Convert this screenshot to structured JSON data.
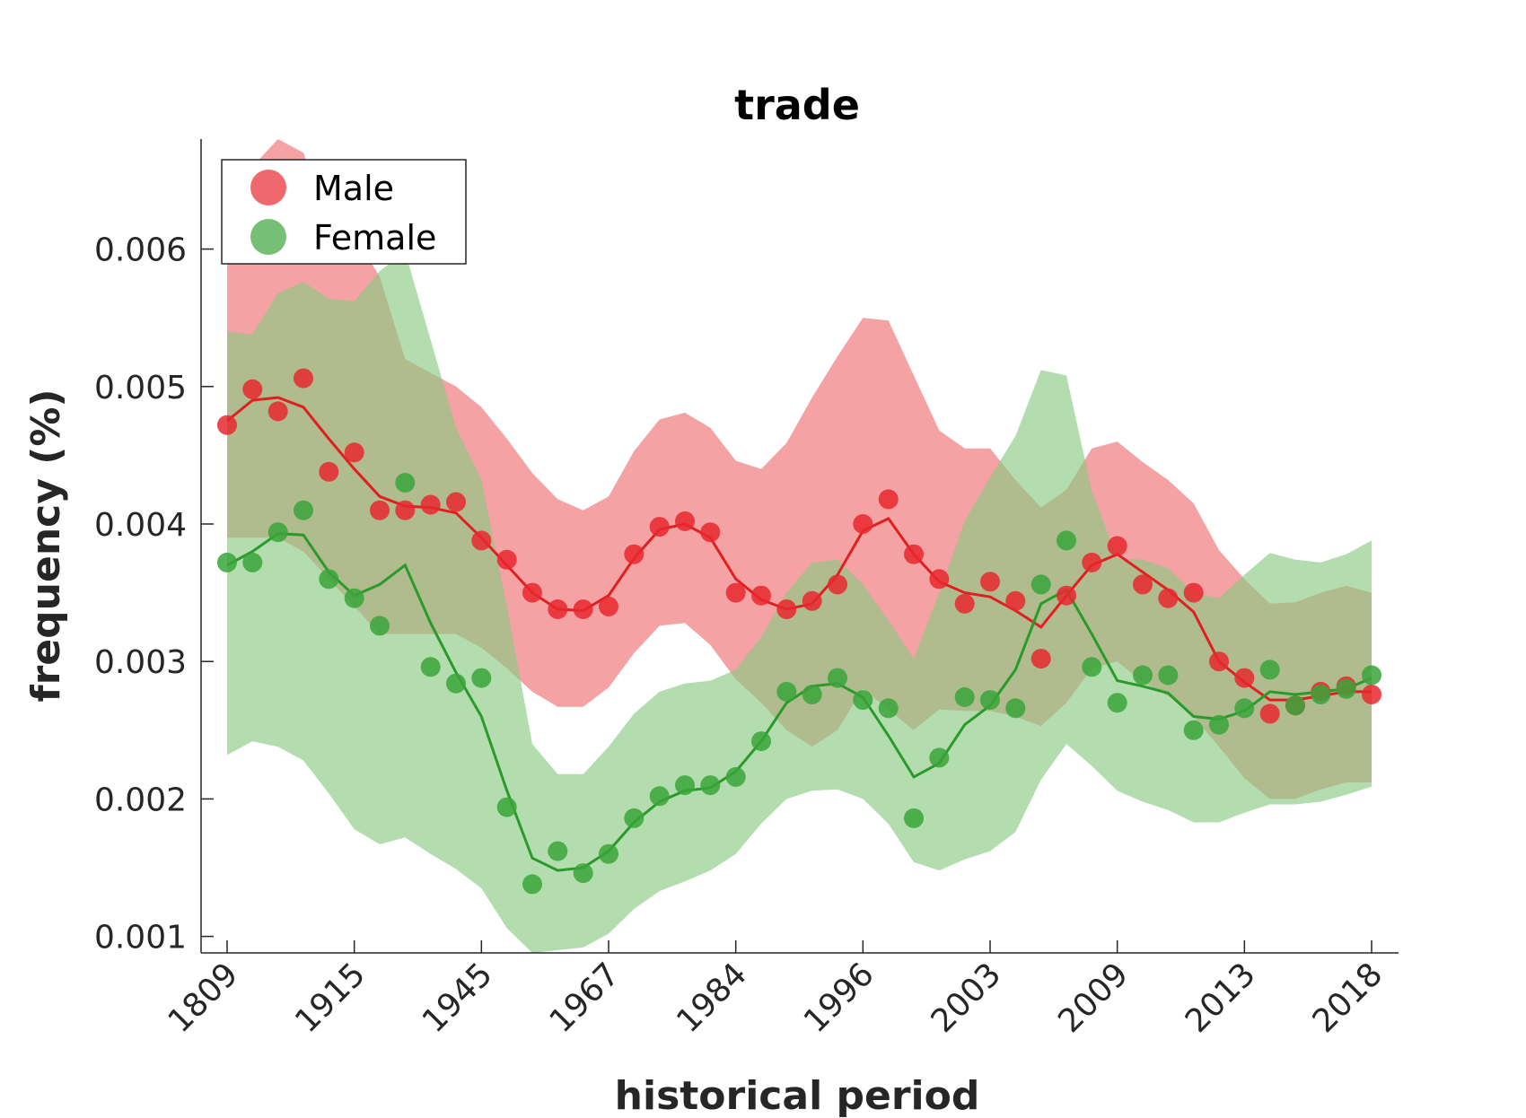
{
  "chart_data": {
    "type": "line",
    "title": "trade",
    "xlabel": "historical period",
    "ylabel": "frequency (%)",
    "ylim": [
      0.00088,
      0.0068
    ],
    "y_ticks": [
      "0.001",
      "0.002",
      "0.003",
      "0.004",
      "0.005",
      "0.006"
    ],
    "y_tick_values": [
      0.001,
      0.002,
      0.003,
      0.004,
      0.005,
      0.006
    ],
    "x_tick_labels": [
      "1809",
      "1915",
      "1945",
      "1967",
      "1984",
      "1996",
      "2003",
      "2009",
      "2013",
      "2018"
    ],
    "x_tick_indices": [
      0,
      5,
      10,
      15,
      20,
      25,
      30,
      35,
      40,
      45
    ],
    "n_points": 46,
    "legend_position": "top-left",
    "grid": false,
    "colors": {
      "male_point": "#e8282f",
      "male_line": "#e02020",
      "male_band": "#f4a2a4",
      "female_point": "#3aa53a",
      "female_line": "#2a9a2a",
      "female_band": "#a9d9a2",
      "overlap_line": "#9a4a1f",
      "axis": "#262626"
    },
    "series": [
      {
        "name": "Male",
        "points": [
          0.00472,
          0.00498,
          0.00482,
          0.00506,
          0.00438,
          0.00452,
          0.0041,
          0.0041,
          0.00414,
          0.00416,
          0.00388,
          0.00374,
          0.0035,
          0.00338,
          0.00338,
          0.0034,
          0.00378,
          0.00398,
          0.00402,
          0.00394,
          0.0035,
          0.00348,
          0.00338,
          0.00344,
          0.00356,
          0.004,
          0.00418,
          0.00378,
          0.0036,
          0.00342,
          0.00358,
          0.00344,
          0.00302,
          0.00348,
          0.00372,
          0.00384,
          0.00356,
          0.00346,
          0.0035,
          0.003,
          0.00288,
          0.00262,
          0.00268,
          0.00278,
          0.00282,
          0.00276
        ],
        "trend": [
          0.00475,
          0.0049,
          0.00492,
          0.00485,
          0.00462,
          0.0044,
          0.0042,
          0.00413,
          0.00412,
          0.00408,
          0.0039,
          0.0037,
          0.0035,
          0.00338,
          0.00337,
          0.00348,
          0.00375,
          0.00396,
          0.004,
          0.0039,
          0.0036,
          0.00345,
          0.00338,
          0.00342,
          0.00363,
          0.00395,
          0.00404,
          0.00378,
          0.00358,
          0.0035,
          0.00347,
          0.00337,
          0.00325,
          0.00348,
          0.0037,
          0.00378,
          0.00365,
          0.00352,
          0.00336,
          0.003,
          0.00285,
          0.00272,
          0.00272,
          0.00275,
          0.00278,
          0.00278
        ],
        "band_upper": [
          0.0061,
          0.0066,
          0.0068,
          0.0067,
          0.0062,
          0.0061,
          0.0058,
          0.0052,
          0.0051,
          0.005,
          0.00485,
          0.00462,
          0.00437,
          0.00418,
          0.0041,
          0.0042,
          0.00453,
          0.00476,
          0.00481,
          0.0047,
          0.00446,
          0.0044,
          0.00459,
          0.00492,
          0.00522,
          0.0055,
          0.00548,
          0.00508,
          0.00468,
          0.00455,
          0.00455,
          0.00432,
          0.00412,
          0.00425,
          0.00455,
          0.0046,
          0.00445,
          0.00432,
          0.00415,
          0.00381,
          0.0036,
          0.00342,
          0.00343,
          0.0035,
          0.00355,
          0.0035
        ],
        "band_lower": [
          0.0039,
          0.0039,
          0.0039,
          0.0038,
          0.0036,
          0.0034,
          0.0032,
          0.0032,
          0.0032,
          0.0032,
          0.0031,
          0.00295,
          0.00278,
          0.00267,
          0.00267,
          0.00281,
          0.00306,
          0.00326,
          0.00328,
          0.00312,
          0.00287,
          0.0027,
          0.0025,
          0.00238,
          0.0025,
          0.0028,
          0.00265,
          0.0025,
          0.00265,
          0.00264,
          0.00264,
          0.0026,
          0.00253,
          0.0027,
          0.00295,
          0.003,
          0.00285,
          0.00275,
          0.0026,
          0.00238,
          0.00215,
          0.002,
          0.002,
          0.00207,
          0.00212,
          0.00212
        ]
      },
      {
        "name": "Female",
        "points": [
          0.00372,
          0.00372,
          0.00394,
          0.0041,
          0.0036,
          0.00346,
          0.00326,
          0.0043,
          0.00296,
          0.00284,
          0.00288,
          0.00194,
          0.00138,
          0.00162,
          0.00146,
          0.0016,
          0.00186,
          0.00202,
          0.0021,
          0.0021,
          0.00216,
          0.00242,
          0.00278,
          0.00276,
          0.00288,
          0.00272,
          0.00266,
          0.00186,
          0.0023,
          0.00274,
          0.00272,
          0.00266,
          0.00356,
          0.00388,
          0.00296,
          0.0027,
          0.0029,
          0.0029,
          0.0025,
          0.00254,
          0.00266,
          0.00294,
          0.00268,
          0.00276,
          0.0028,
          0.0029
        ],
        "trend": [
          0.0037,
          0.0038,
          0.00393,
          0.00392,
          0.00365,
          0.00348,
          0.00356,
          0.0037,
          0.00328,
          0.00292,
          0.0026,
          0.00206,
          0.00157,
          0.00148,
          0.0015,
          0.00162,
          0.00183,
          0.00198,
          0.00206,
          0.00208,
          0.0022,
          0.00242,
          0.0027,
          0.00282,
          0.00284,
          0.00274,
          0.00246,
          0.00216,
          0.00226,
          0.00254,
          0.00268,
          0.00294,
          0.00342,
          0.00352,
          0.0032,
          0.00286,
          0.00282,
          0.00277,
          0.0026,
          0.00258,
          0.00264,
          0.00278,
          0.00276,
          0.00278,
          0.0028,
          0.00288
        ],
        "band_upper": [
          0.0054,
          0.00538,
          0.00568,
          0.00576,
          0.00564,
          0.00562,
          0.00584,
          0.00598,
          0.00534,
          0.0047,
          0.00432,
          0.0034,
          0.0024,
          0.00218,
          0.00218,
          0.00238,
          0.00262,
          0.00278,
          0.00284,
          0.00286,
          0.00294,
          0.00318,
          0.0035,
          0.00372,
          0.00374,
          0.00356,
          0.0033,
          0.00302,
          0.0035,
          0.00402,
          0.00434,
          0.00464,
          0.00512,
          0.00508,
          0.00424,
          0.00375,
          0.00374,
          0.00368,
          0.0035,
          0.00346,
          0.00363,
          0.00379,
          0.00374,
          0.00372,
          0.00378,
          0.00388
        ],
        "band_lower": [
          0.00232,
          0.00242,
          0.00238,
          0.00228,
          0.00204,
          0.00178,
          0.00167,
          0.00172,
          0.0016,
          0.00149,
          0.00135,
          0.00106,
          0.00088,
          0.0009,
          0.00092,
          0.00102,
          0.0012,
          0.00133,
          0.0014,
          0.00148,
          0.0016,
          0.00182,
          0.002,
          0.00206,
          0.00207,
          0.002,
          0.00182,
          0.00154,
          0.00148,
          0.00156,
          0.00162,
          0.00176,
          0.00214,
          0.0024,
          0.00224,
          0.00206,
          0.00198,
          0.00192,
          0.00183,
          0.00183,
          0.0019,
          0.00196,
          0.00196,
          0.00198,
          0.00203,
          0.00209
        ]
      }
    ]
  }
}
